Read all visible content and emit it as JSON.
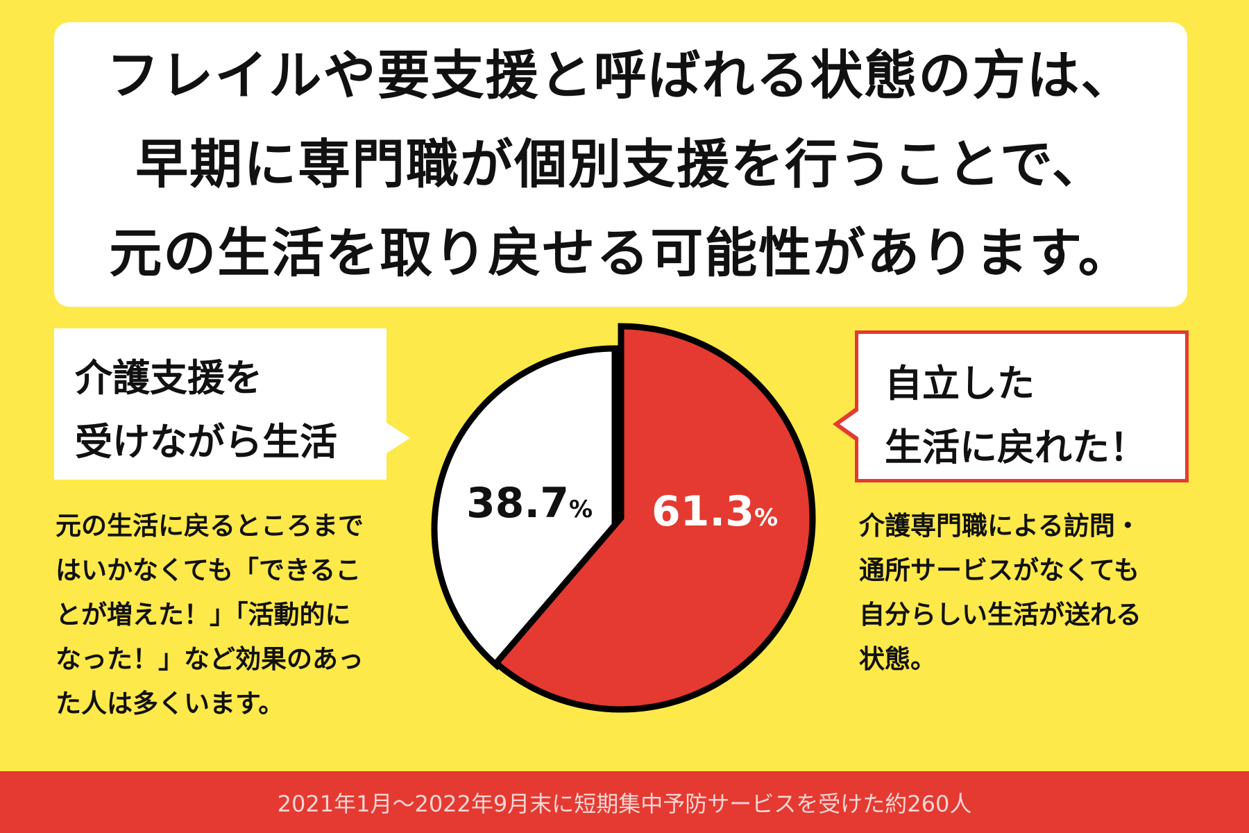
{
  "headline": {
    "lines": [
      "フレイルや要支援と呼ばれる状態の方は、",
      "早期に専門職が個別支援を行うことで、",
      "元の生活を取り戻せる可能性があります。"
    ]
  },
  "left_label": {
    "lines": [
      "介護支援を",
      "受けながら生活"
    ]
  },
  "right_label": {
    "lines": [
      "自立した",
      "生活に戻れた！"
    ]
  },
  "left_description": {
    "lines": [
      "元の生活に戻るところまで",
      "はいかなくても「できるこ",
      "とが増えた！」「活動的に",
      "なった！」など効果のあっ",
      "た人は多くいます。"
    ]
  },
  "right_description": {
    "lines": [
      "介護専門職による訪問・",
      "通所サービスがなくても",
      "自分らしい生活が送れる",
      "状態。"
    ]
  },
  "chart_data": {
    "type": "pie",
    "slices": [
      {
        "label": "自立した生活に戻れた！",
        "value": 61.3,
        "display": "61.3",
        "unit": "%",
        "color": "#e43a31",
        "text_color": "#ffffff"
      },
      {
        "label": "介護支援を受けながら生活",
        "value": 38.7,
        "display": "38.7",
        "unit": "%",
        "color": "#ffffff",
        "text_color": "#111111"
      }
    ],
    "start": "top",
    "direction": "clockwise"
  },
  "footer": {
    "note": "2021年1月〜2022年9月末に短期集中予防サービスを受けた約260人"
  },
  "colors": {
    "background": "#fde94a",
    "accent": "#e43a31"
  }
}
